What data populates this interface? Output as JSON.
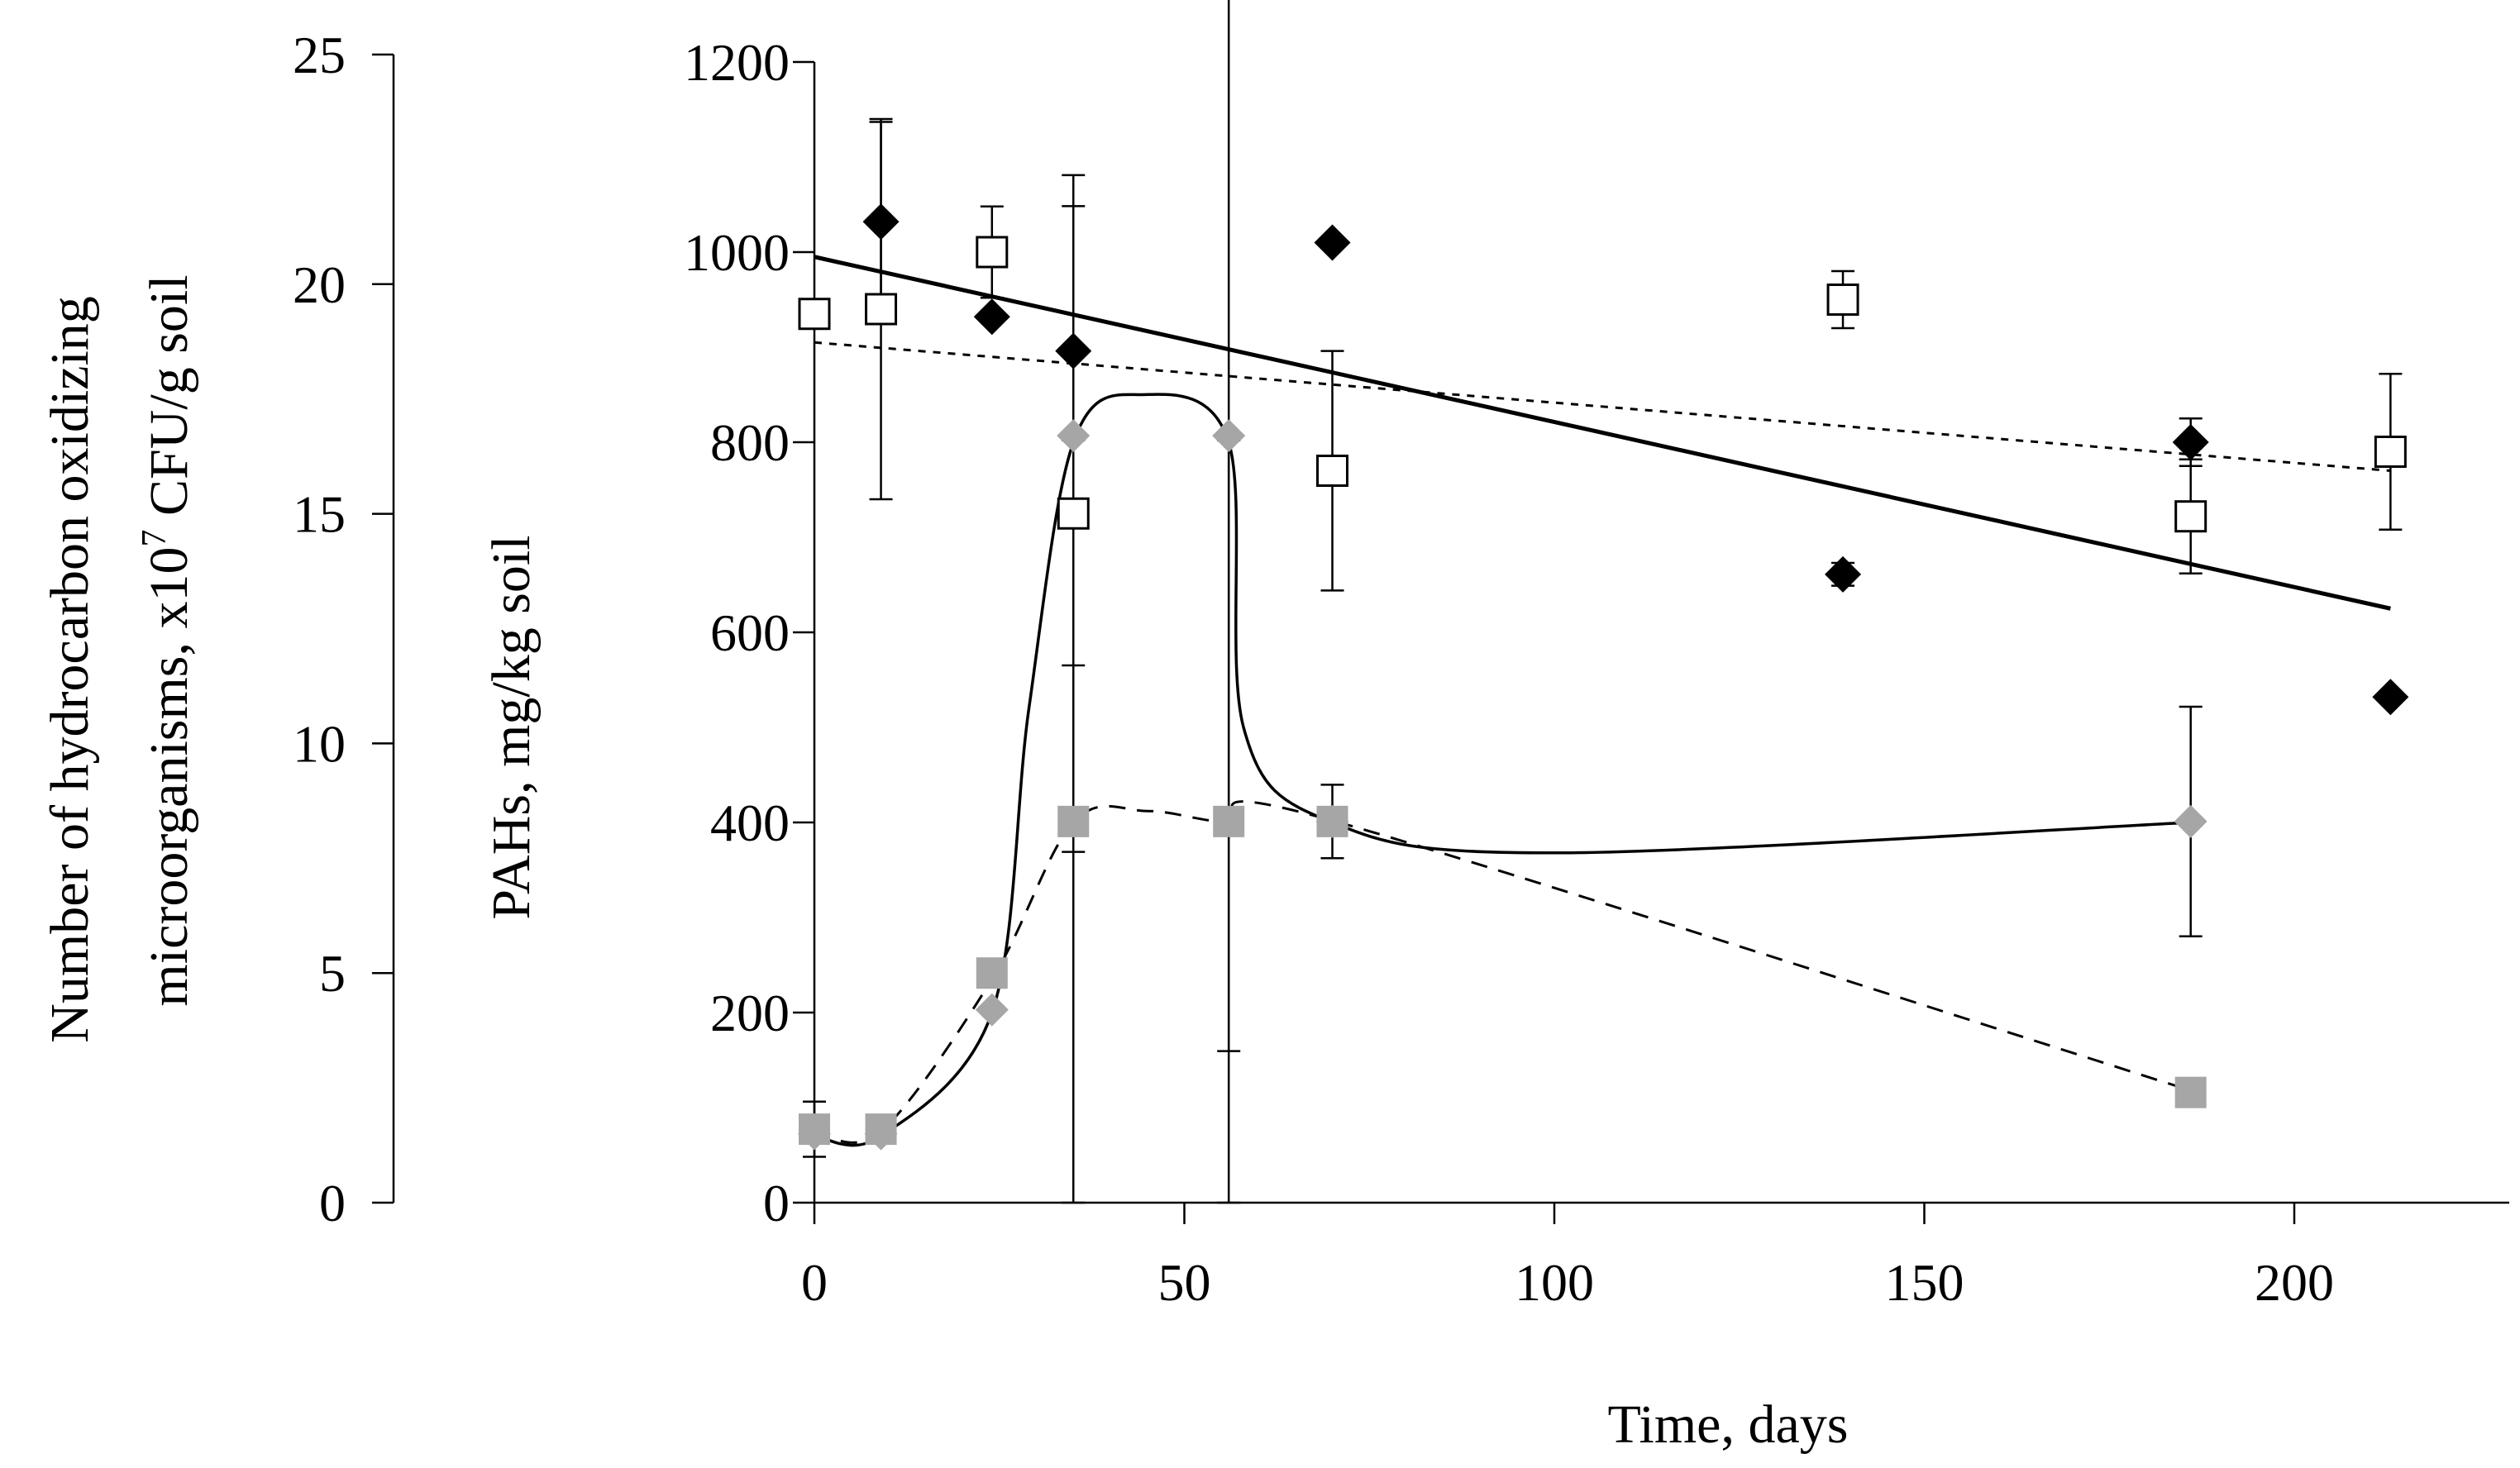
{
  "chart_data": {
    "type": "scatter",
    "title": "",
    "xlabel": "Time, days",
    "ylabel_left": {
      "line1": "Number of hydrocarbon oxidizing",
      "line2_prefix": "microorganisms, x10",
      "line2_sup": "7",
      "line2_suffix": " CFU/g soil"
    },
    "ylabel_right": "PAHs, mg/kg soil",
    "xlim": [
      0,
      230
    ],
    "x_ticks": [
      "0",
      "50",
      "100",
      "150",
      "200"
    ],
    "y_pah_lim": [
      0,
      1200
    ],
    "y_pah_ticks": [
      "0",
      "200",
      "400",
      "600",
      "800",
      "1000",
      "1200"
    ],
    "y_micro_lim": [
      0,
      25
    ],
    "y_micro_ticks": [
      "0",
      "5",
      "10",
      "15",
      "20",
      "25"
    ],
    "colors": {
      "black": "#000000",
      "gray": "#a6a6a6",
      "white": "#ffffff"
    },
    "series": [
      {
        "name": "PAHs (filled diamonds)",
        "axis": "pah",
        "marker": "diamond-black",
        "x": [
          9,
          24,
          35,
          70,
          139,
          186,
          213
        ],
        "y": [
          1032,
          932,
          896,
          1010,
          661,
          800,
          532
        ],
        "err": [
          105,
          0,
          0,
          0,
          12,
          25,
          0
        ]
      },
      {
        "name": "PAHs (open squares)",
        "axis": "pah",
        "marker": "square-open",
        "x": [
          0,
          9,
          24,
          35,
          70,
          139,
          186,
          213
        ],
        "y": [
          935,
          940,
          1000,
          725,
          770,
          950,
          722,
          790
        ],
        "err": [
          0,
          200,
          48,
          356,
          126,
          30,
          60,
          82
        ]
      },
      {
        "name": "Microorganisms (gray diamonds)",
        "axis": "micro",
        "marker": "diamond-gray",
        "x": [
          0,
          9,
          24,
          35,
          56,
          70,
          186
        ],
        "y": [
          1.5,
          1.5,
          4.2,
          16.7,
          16.7,
          8.3,
          8.3
        ],
        "err": [
          0,
          0,
          0,
          5.0,
          13.4,
          0,
          2.5
        ]
      },
      {
        "name": "Microorganisms (gray squares)",
        "axis": "micro",
        "marker": "square-gray",
        "x": [
          0,
          9,
          24,
          35,
          56,
          70,
          186
        ],
        "y": [
          1.6,
          1.6,
          5.0,
          8.3,
          8.3,
          8.3,
          2.4
        ],
        "err": [
          0.6,
          0,
          0,
          8.3,
          8.3,
          0.8,
          0
        ]
      }
    ],
    "trendlines": [
      {
        "name": "linear trend filled diamonds",
        "axis": "pah",
        "style": "solid",
        "x": [
          0,
          213
        ],
        "y": [
          995,
          625
        ]
      },
      {
        "name": "linear trend open squares",
        "axis": "pah",
        "style": "dotted",
        "x": [
          0,
          213
        ],
        "y": [
          905,
          770
        ]
      }
    ],
    "smooth_curves": [
      {
        "name": "smoothed gray diamonds",
        "axis": "pah",
        "style": "solid",
        "x": [
          0,
          9,
          24,
          29,
          35,
          44,
          56,
          58,
          70,
          100,
          186
        ],
        "y": [
          70,
          70,
          200,
          520,
          800,
          850,
          800,
          500,
          400,
          368,
          400
        ]
      },
      {
        "name": "smoothed gray squares",
        "axis": "pah",
        "style": "dashed",
        "x": [
          0,
          9,
          24,
          35,
          45,
          56,
          70,
          186
        ],
        "y": [
          75,
          75,
          235,
          400,
          412,
          400,
          402,
          118
        ]
      }
    ]
  }
}
